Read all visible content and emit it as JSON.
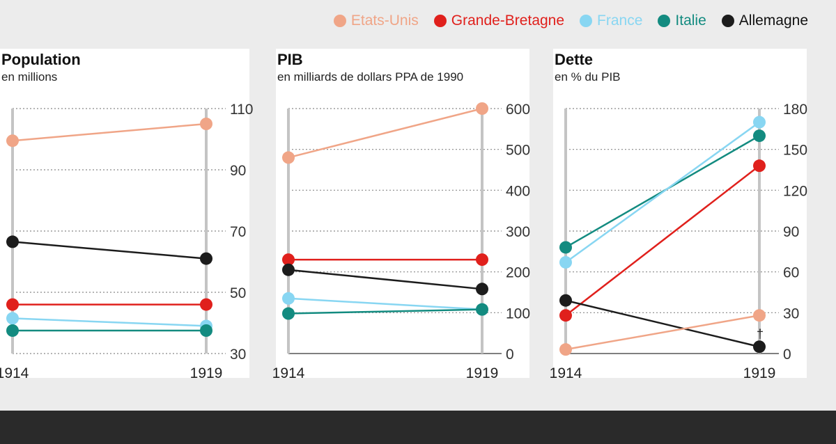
{
  "legend": [
    {
      "name": "Etats-Unis",
      "color": "#f0a587"
    },
    {
      "name": "Grande-Bretagne",
      "color": "#e0201c"
    },
    {
      "name": "France",
      "color": "#88d6f2"
    },
    {
      "name": "Italie",
      "color": "#138b80"
    },
    {
      "name": "Allemagne",
      "color": "#1c1c1c"
    }
  ],
  "chart_data": [
    {
      "type": "line",
      "title": "Population",
      "subtitle": "en millions",
      "x": [
        "1914",
        "1919"
      ],
      "ylim": [
        30,
        110
      ],
      "yticks": [
        110,
        90,
        70,
        50,
        30
      ],
      "series": [
        {
          "name": "Etats-Unis",
          "values": [
            99.5,
            105
          ]
        },
        {
          "name": "Allemagne",
          "values": [
            66.5,
            61
          ]
        },
        {
          "name": "Grande-Bretagne",
          "values": [
            46,
            46
          ]
        },
        {
          "name": "France",
          "values": [
            41.5,
            39
          ]
        },
        {
          "name": "Italie",
          "values": [
            37.5,
            37.5
          ]
        }
      ]
    },
    {
      "type": "line",
      "title": "PIB",
      "subtitle": "en milliards de dollars PPA de 1990",
      "x": [
        "1914",
        "1919"
      ],
      "ylim": [
        0,
        600
      ],
      "yticks": [
        600,
        500,
        400,
        300,
        200,
        100,
        0
      ],
      "series": [
        {
          "name": "Etats-Unis",
          "values": [
            480,
            600
          ]
        },
        {
          "name": "Grande-Bretagne",
          "values": [
            230,
            230
          ]
        },
        {
          "name": "Allemagne",
          "values": [
            205,
            158
          ]
        },
        {
          "name": "France",
          "values": [
            135,
            108
          ]
        },
        {
          "name": "Italie",
          "values": [
            98,
            108
          ]
        }
      ]
    },
    {
      "type": "line",
      "title": "Dette",
      "subtitle": "en % du PIB",
      "x": [
        "1914",
        "1919"
      ],
      "ylim": [
        0,
        180
      ],
      "yticks": [
        180,
        150,
        120,
        90,
        60,
        30,
        0
      ],
      "annotation": "†",
      "series": [
        {
          "name": "Italie",
          "values": [
            78,
            160
          ]
        },
        {
          "name": "France",
          "values": [
            67,
            170
          ]
        },
        {
          "name": "Grande-Bretagne",
          "values": [
            28,
            138
          ]
        },
        {
          "name": "Allemagne",
          "values": [
            39,
            5
          ]
        },
        {
          "name": "Etats-Unis",
          "values": [
            3,
            28
          ]
        }
      ]
    }
  ]
}
